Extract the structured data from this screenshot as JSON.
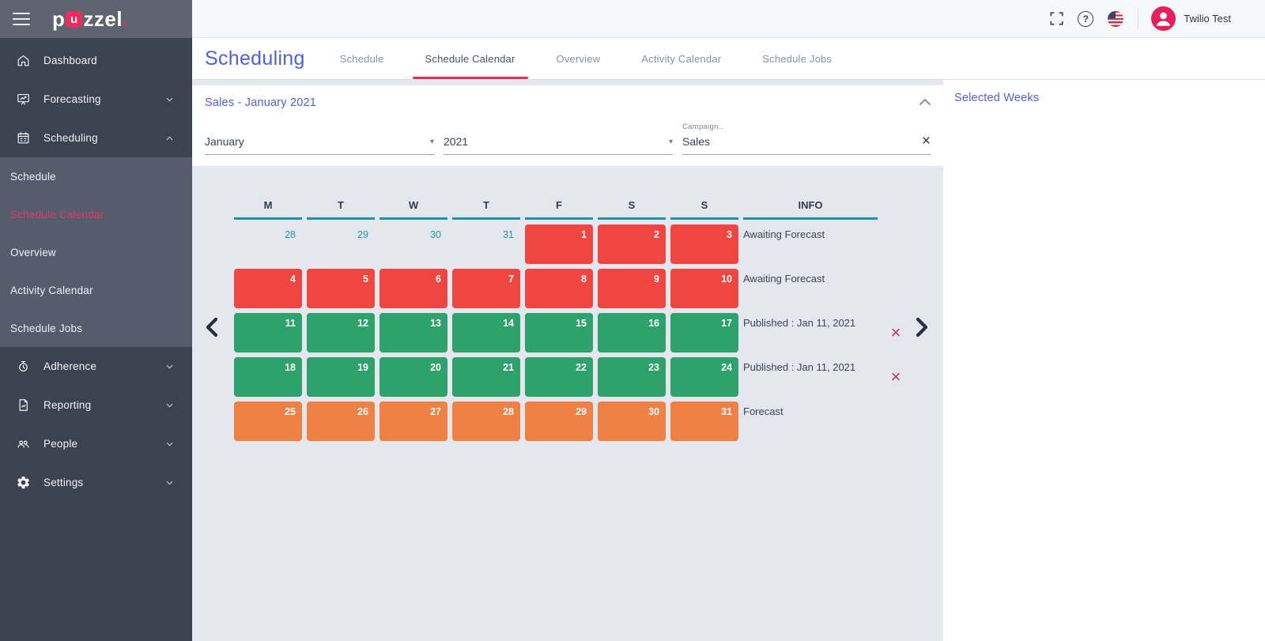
{
  "topbar": {
    "logo": {
      "pre": "p",
      "u": "u",
      "post": "zzel",
      "dot": "."
    },
    "user_name": "Twilio Test"
  },
  "sidebar": {
    "dashboard": "Dashboard",
    "forecasting": "Forecasting",
    "scheduling": "Scheduling",
    "submenu": {
      "schedule": "Schedule",
      "schedule_calendar": "Schedule Calendar",
      "overview": "Overview",
      "activity_calendar": "Activity Calendar",
      "schedule_jobs": "Schedule Jobs"
    },
    "active_item": "Schedule Calendar",
    "adherence": "Adherence",
    "reporting": "Reporting",
    "people": "People",
    "settings": "Settings"
  },
  "header": {
    "title": "Scheduling",
    "tabs": [
      "Schedule",
      "Schedule Calendar",
      "Overview",
      "Activity Calendar",
      "Schedule Jobs"
    ],
    "active_tab": "Schedule Calendar"
  },
  "filter_card": {
    "title": "Sales - January 2021",
    "month_value": "January",
    "year_value": "2021",
    "campaign_label": "Campaign..",
    "campaign_value": "Sales"
  },
  "calendar": {
    "day_headers": [
      "M",
      "T",
      "W",
      "T",
      "F",
      "S",
      "S"
    ],
    "info_header": "INFO",
    "status_colors": {
      "awaiting": "#f04641",
      "published": "#2da26b",
      "forecast": "#ef8146"
    },
    "outside_text_color": "#2195aa",
    "weeks": [
      {
        "days": [
          {
            "n": 28,
            "s": "outside"
          },
          {
            "n": 29,
            "s": "outside"
          },
          {
            "n": 30,
            "s": "outside"
          },
          {
            "n": 31,
            "s": "outside"
          },
          {
            "n": 1,
            "s": "awaiting"
          },
          {
            "n": 2,
            "s": "awaiting"
          },
          {
            "n": 3,
            "s": "awaiting"
          }
        ],
        "info": "Awaiting Forecast",
        "removable": false
      },
      {
        "days": [
          {
            "n": 4,
            "s": "awaiting"
          },
          {
            "n": 5,
            "s": "awaiting"
          },
          {
            "n": 6,
            "s": "awaiting"
          },
          {
            "n": 7,
            "s": "awaiting"
          },
          {
            "n": 8,
            "s": "awaiting"
          },
          {
            "n": 9,
            "s": "awaiting"
          },
          {
            "n": 10,
            "s": "awaiting"
          }
        ],
        "info": "Awaiting Forecast",
        "removable": false
      },
      {
        "days": [
          {
            "n": 11,
            "s": "published"
          },
          {
            "n": 12,
            "s": "published"
          },
          {
            "n": 13,
            "s": "published"
          },
          {
            "n": 14,
            "s": "published"
          },
          {
            "n": 15,
            "s": "published"
          },
          {
            "n": 16,
            "s": "published"
          },
          {
            "n": 17,
            "s": "published"
          }
        ],
        "info": "Published : Jan 11, 2021",
        "removable": true
      },
      {
        "days": [
          {
            "n": 18,
            "s": "published"
          },
          {
            "n": 19,
            "s": "published"
          },
          {
            "n": 20,
            "s": "published"
          },
          {
            "n": 21,
            "s": "published"
          },
          {
            "n": 22,
            "s": "published"
          },
          {
            "n": 23,
            "s": "published"
          },
          {
            "n": 24,
            "s": "published"
          }
        ],
        "info": "Published : Jan 11, 2021",
        "removable": true
      },
      {
        "days": [
          {
            "n": 25,
            "s": "forecast"
          },
          {
            "n": 26,
            "s": "forecast"
          },
          {
            "n": 27,
            "s": "forecast"
          },
          {
            "n": 28,
            "s": "forecast"
          },
          {
            "n": 29,
            "s": "forecast"
          },
          {
            "n": 30,
            "s": "forecast"
          },
          {
            "n": 31,
            "s": "forecast"
          }
        ],
        "info": "Forecast",
        "removable": false
      }
    ]
  },
  "right_panel": {
    "title": "Selected Weeks"
  },
  "icons": {
    "remove_week": "×",
    "clear_campaign": "×",
    "dropdown_arrow": "▾",
    "help": "?"
  },
  "colors": {
    "accent_pink": "#ec2a5c",
    "accent_blue": "#4e5fe4",
    "teal_underline": "#1d93a8",
    "remove_x": "#c73253",
    "sidebar_bg": "#3c4350",
    "submenu_bg": "#555c6c",
    "topbar_left_bg": "#5d6470",
    "content_bg": "#e4e8ee"
  }
}
